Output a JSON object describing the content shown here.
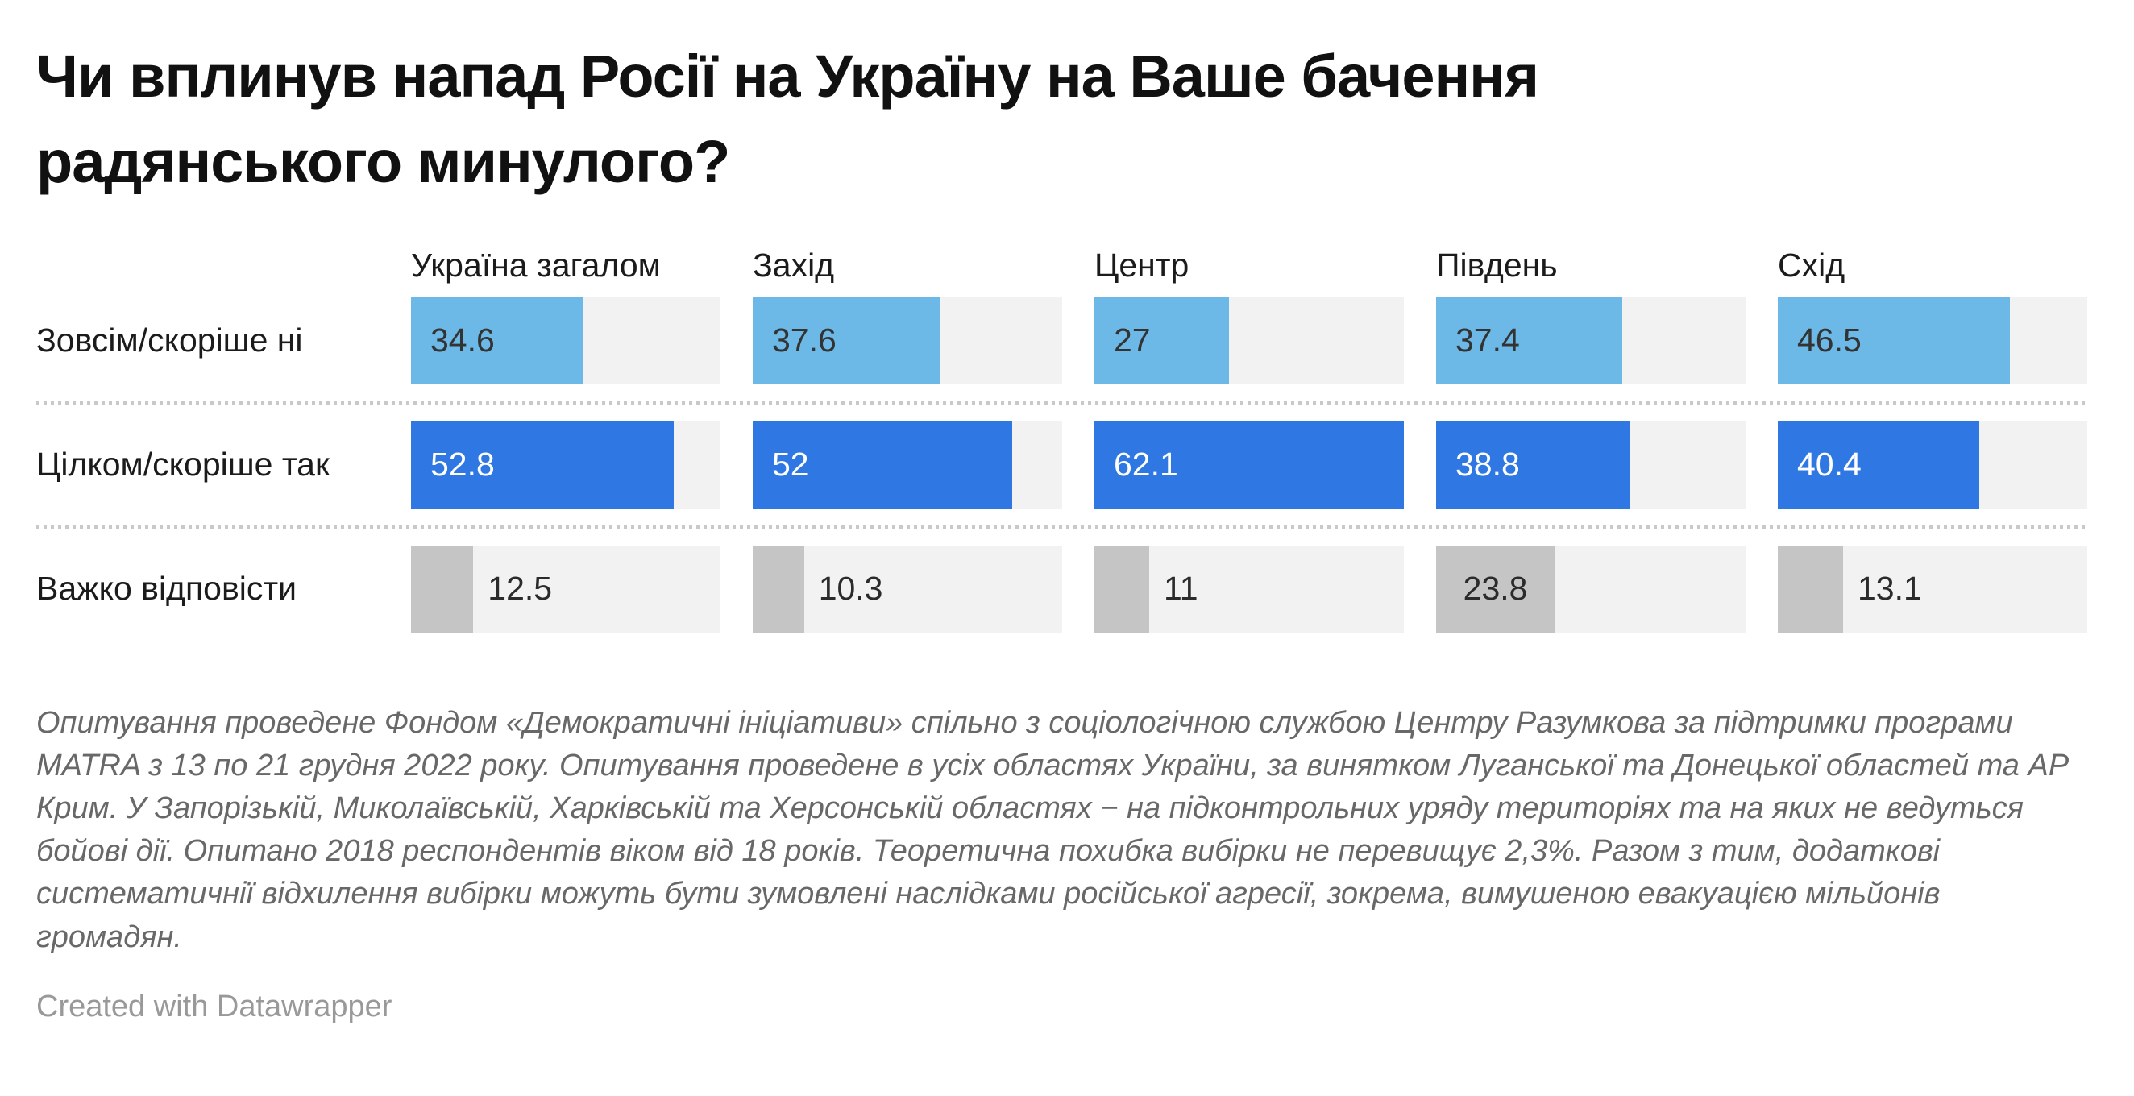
{
  "title": "Чи вплинув напад Росії на Україну на Ваше бачення радянського минулого?",
  "chart_data": {
    "type": "bar",
    "orientation": "horizontal",
    "title": "Чи вплинув напад Росії на Україну на Ваше бачення радянського минулого?",
    "categories": [
      "Україна загалом",
      "Захід",
      "Центр",
      "Південь",
      "Схід"
    ],
    "series": [
      {
        "name": "Зовсім/скоріше ні",
        "values": [
          34.6,
          37.6,
          27,
          37.4,
          46.5
        ]
      },
      {
        "name": "Цілком/скоріше так",
        "values": [
          52.8,
          52,
          62.1,
          38.8,
          40.4
        ]
      },
      {
        "name": "Важко відповісти",
        "values": [
          12.5,
          10.3,
          11,
          23.8,
          13.1
        ]
      }
    ],
    "value_axis_max": 62.1,
    "grid": "off",
    "legend": "none",
    "value_labels": "on"
  },
  "style": {
    "rows": [
      {
        "bar_color": "#6cb8e6",
        "value_color": "#333333",
        "value_inside": true
      },
      {
        "bar_color": "#2f78e4",
        "value_color": "#ffffff",
        "value_inside": true
      },
      {
        "bar_color": "#c5c5c5",
        "value_color": "#2b2b2b",
        "value_inside": false
      }
    ],
    "track_color": "#f2f2f2",
    "separator_color": "#c9c9c9"
  },
  "footnote": "Опитування проведене Фондом «Демократичні ініціативи» спільно з соціологічною службою Центру Разумкова за підтримки програми MATRA з 13 по 21 грудня 2022 року. Опитування проведене в усіх областях України, за винятком Луганської та Донецької областей та АР Крим. У Запорізькій, Миколаївській, Харківській та Херсонській областях − на підконтрольних уряду територіях та на яких не ведуться бойові дії. Опитано 2018 респондентів віком від 18 років. Теоретична похибка вибірки не перевищує 2,3%. Разом з тим, додаткові систематичнії відхилення вибірки можуть бути зумовлені наслідками російської агресії, зокрема, вимушеною евакуацією мільйонів громадян.",
  "credit": "Created with Datawrapper"
}
